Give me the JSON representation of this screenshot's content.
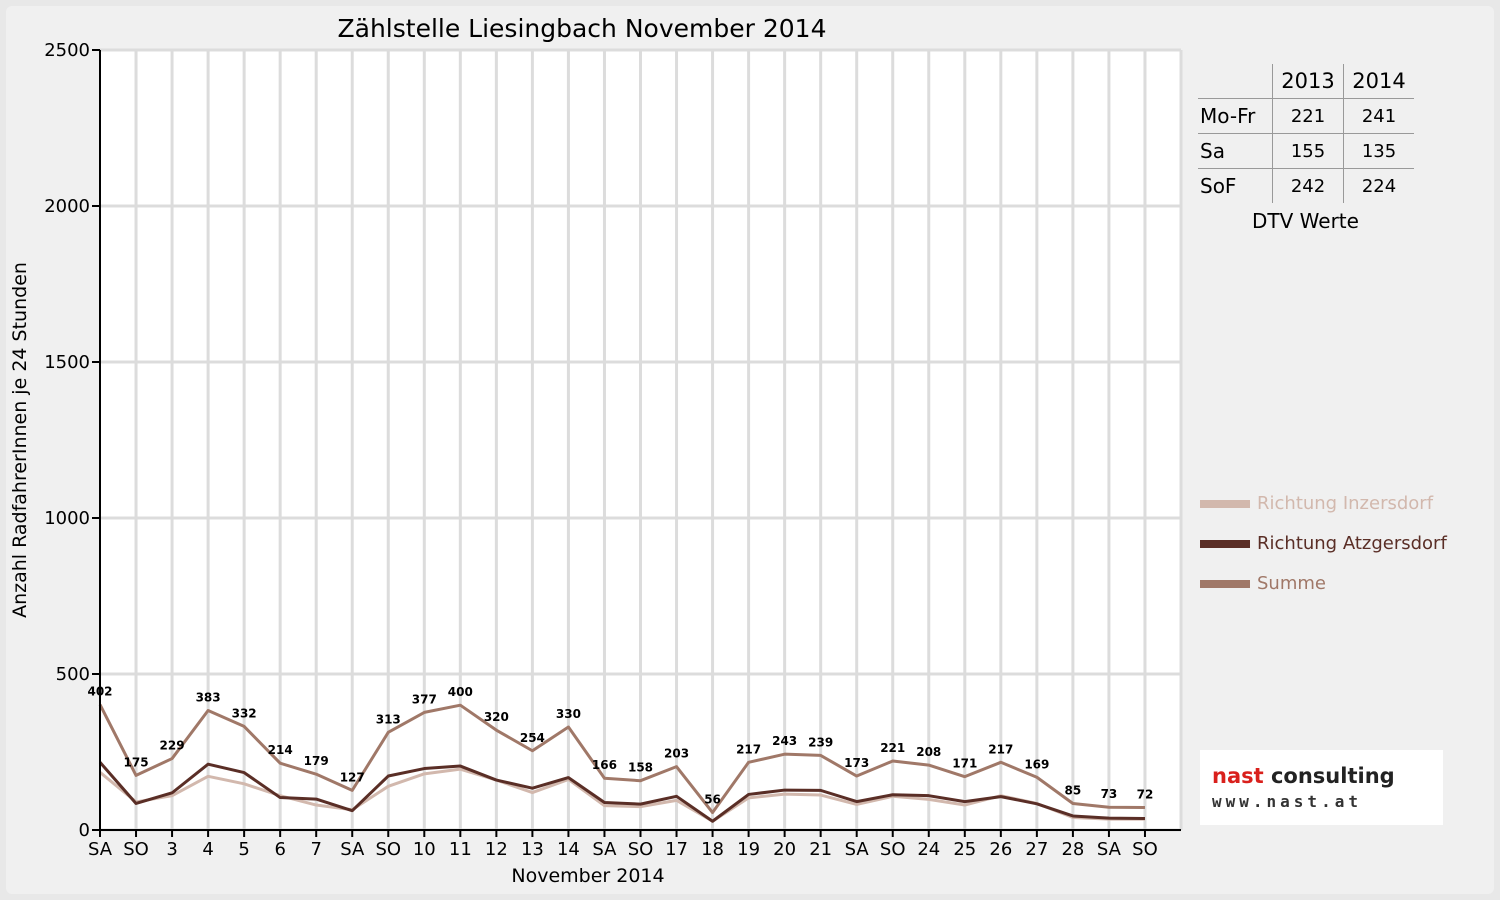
{
  "chart_data": {
    "type": "line",
    "title": "Zählstelle Liesingbach November 2014",
    "xlabel": "November 2014",
    "ylabel": "Anzahl RadfahrerInnen je 24 Stunden",
    "ylim": [
      0,
      2500
    ],
    "yticks": [
      "0",
      "500",
      "1000",
      "1500",
      "2000",
      "2500"
    ],
    "grid": true,
    "legend_position": "right",
    "categories": [
      "SA",
      "SO",
      "3",
      "4",
      "5",
      "6",
      "7",
      "SA",
      "SO",
      "10",
      "11",
      "12",
      "13",
      "14",
      "SA",
      "SO",
      "17",
      "18",
      "19",
      "20",
      "21",
      "SA",
      "SO",
      "24",
      "25",
      "26",
      "27",
      "28",
      "SA",
      "SO"
    ],
    "weekend_markers": [
      false,
      true,
      false,
      false,
      false,
      false,
      false,
      false,
      true,
      false,
      false,
      false,
      false,
      false,
      false,
      true,
      false,
      false,
      false,
      false,
      false,
      false,
      true,
      false,
      false,
      false,
      false,
      false,
      false,
      true
    ],
    "series": [
      {
        "name": "Richtung Inzersdorf",
        "color": "#d2b8ad",
        "values": [
          185,
          90,
          110,
          172,
          148,
          110,
          80,
          65,
          140,
          180,
          195,
          160,
          120,
          162,
          78,
          75,
          95,
          28,
          103,
          115,
          112,
          82,
          108,
          98,
          80,
          110,
          85,
          40,
          35,
          35
        ]
      },
      {
        "name": "Richtung Atzgersdorf",
        "color": "#5a2e26",
        "values": [
          217,
          85,
          119,
          211,
          184,
          104,
          99,
          62,
          173,
          197,
          205,
          160,
          134,
          168,
          88,
          83,
          108,
          28,
          114,
          128,
          127,
          91,
          113,
          110,
          91,
          107,
          84,
          45,
          38,
          37
        ]
      },
      {
        "name": "Summe",
        "color": "#a07868",
        "values": [
          402,
          175,
          229,
          383,
          332,
          214,
          179,
          127,
          313,
          377,
          400,
          320,
          254,
          330,
          166,
          158,
          203,
          56,
          217,
          243,
          239,
          173,
          221,
          208,
          171,
          217,
          169,
          85,
          73,
          72
        ]
      }
    ],
    "data_labels": [
      "402",
      "175",
      "229",
      "383",
      "332",
      "214",
      "179",
      "127",
      "313",
      "377",
      "400",
      "320",
      "254",
      "330",
      "166",
      "158",
      "203",
      "56",
      "217",
      "243",
      "239",
      "173",
      "221",
      "208",
      "171",
      "217",
      "169",
      "85",
      "73",
      "72"
    ]
  },
  "dtv_table": {
    "years": [
      "2013",
      "2014"
    ],
    "rows": [
      {
        "label": "Mo-Fr",
        "v2013": "221",
        "v2014": "241"
      },
      {
        "label": "Sa",
        "v2013": "155",
        "v2014": "135"
      },
      {
        "label": "SoF",
        "v2013": "242",
        "v2014": "224"
      }
    ],
    "caption": "DTV Werte"
  },
  "logo": {
    "name_part1": "nast",
    "name_part2": " consulting",
    "url": "www.nast.at"
  },
  "colors": {
    "weekend_label": "#ff0000",
    "grid": "#d9d9d9",
    "plot_bg": "#ffffff"
  }
}
